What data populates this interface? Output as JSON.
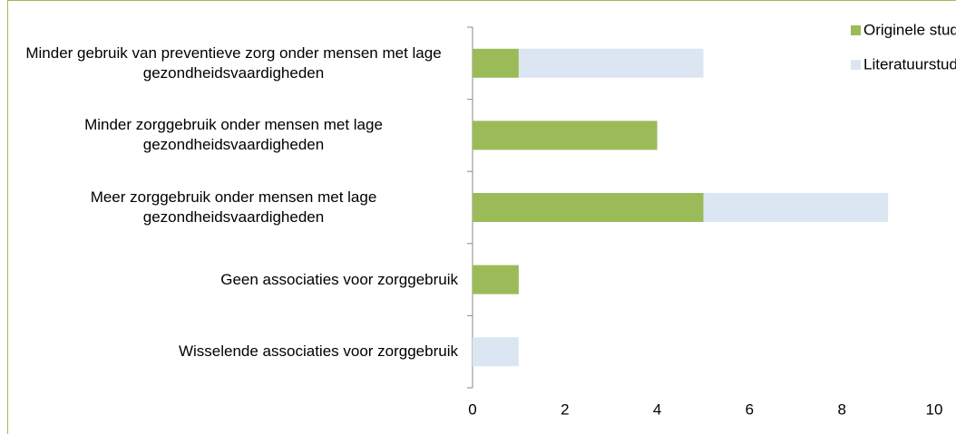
{
  "chart_data": {
    "type": "stacked-bar-horizontal",
    "categories": [
      "Minder gebruik van preventieve zorg onder mensen met lage gezondheidsvaardigheden",
      "Minder zorggebruik onder mensen met lage gezondheidsvaardigheden",
      "Meer zorggebruik onder mensen met lage gezondheidsvaardigheden",
      "Geen associaties voor zorggebruik",
      "Wisselende associaties voor zorggebruik"
    ],
    "series": [
      {
        "name": "Originele studies",
        "color": "#9bbb59",
        "values": [
          1,
          4,
          5,
          1,
          0
        ]
      },
      {
        "name": "Literatuurstudies",
        "color": "#dce6f2",
        "values": [
          4,
          0,
          4,
          0,
          1
        ]
      }
    ],
    "xlim": [
      0,
      10
    ],
    "xticks": [
      0,
      2,
      4,
      6,
      8,
      10
    ],
    "legend": "top-right"
  }
}
